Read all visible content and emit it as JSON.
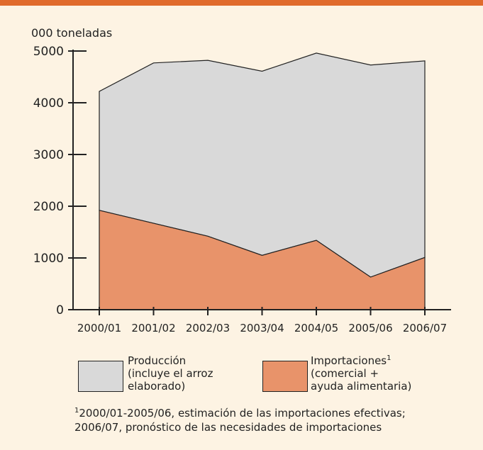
{
  "colors": {
    "background": "#fdf3e3",
    "accent_bar": "#e06a2c",
    "produccion": "#d9d9d9",
    "importaciones": "#e8936a"
  },
  "chart_data": {
    "type": "area",
    "stacked": true,
    "ylabel": "000 toneladas",
    "ylim": [
      0,
      5000
    ],
    "yticks": [
      0,
      1000,
      2000,
      3000,
      4000,
      5000
    ],
    "categories": [
      "2000/01",
      "2001/02",
      "2002/03",
      "2003/04",
      "2004/05",
      "2005/06",
      "2006/07"
    ],
    "series": [
      {
        "name": "Importaciones",
        "color": "#e8936a",
        "values": [
          1920,
          1670,
          1420,
          1050,
          1340,
          630,
          1010
        ]
      },
      {
        "name": "Producción",
        "color": "#d9d9d9",
        "values": [
          2300,
          3100,
          3400,
          3560,
          3620,
          4100,
          3800
        ]
      }
    ],
    "totals": [
      4220,
      4770,
      4820,
      4610,
      4960,
      4730,
      4810
    ]
  },
  "legend": {
    "produccion": {
      "lines": [
        "Producción",
        "(incluye el arroz",
        "elaborado)"
      ]
    },
    "importaciones": {
      "title": "Importaciones",
      "sup": "1",
      "lines": [
        "(comercial +",
        "ayuda alimentaria)"
      ]
    }
  },
  "footnote": {
    "sup": "1",
    "line1": "2000/01-2005/06, estimación de las importaciones efectivas;",
    "line2": "2006/07, pronóstico de las necesidades de importaciones"
  }
}
